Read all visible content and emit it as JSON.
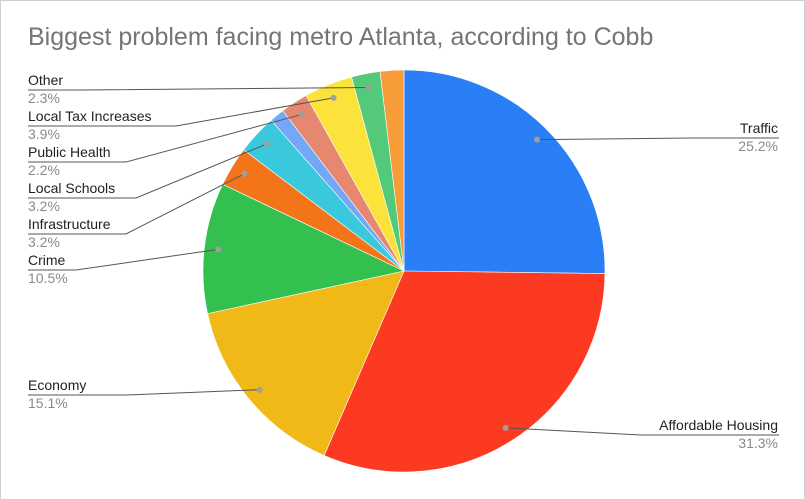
{
  "chart_data": {
    "type": "pie",
    "title": "Biggest problem facing metro Atlanta, according to Cobb",
    "start": "12 o'clock, clockwise",
    "slices": [
      {
        "label": "Traffic",
        "value": 25.2,
        "display": "25.2%",
        "color": "#2a7ff6"
      },
      {
        "label": "Affordable Housing",
        "value": 31.3,
        "display": "31.3%",
        "color": "#fb3a21"
      },
      {
        "label": "Economy",
        "value": 15.1,
        "display": "15.1%",
        "color": "#f0b917"
      },
      {
        "label": "Crime",
        "value": 10.5,
        "display": "10.5%",
        "color": "#33c04f"
      },
      {
        "label": "Infrastructure",
        "value": 3.2,
        "display": "3.2%",
        "color": "#f4741a"
      },
      {
        "label": "Local Schools",
        "value": 3.2,
        "display": "3.2%",
        "color": "#3ac9dc"
      },
      {
        "label": "",
        "value": 1.2,
        "display": "",
        "color": "#72a8f5"
      },
      {
        "label": "Public Health",
        "value": 2.2,
        "display": "2.2%",
        "color": "#e6876f"
      },
      {
        "label": "Local Tax Increases",
        "value": 3.9,
        "display": "3.9%",
        "color": "#fbe33b"
      },
      {
        "label": "Other",
        "value": 2.3,
        "display": "2.3%",
        "color": "#55c97a"
      },
      {
        "label": "",
        "value": 1.9,
        "display": "",
        "color": "#f89c3a"
      }
    ]
  }
}
